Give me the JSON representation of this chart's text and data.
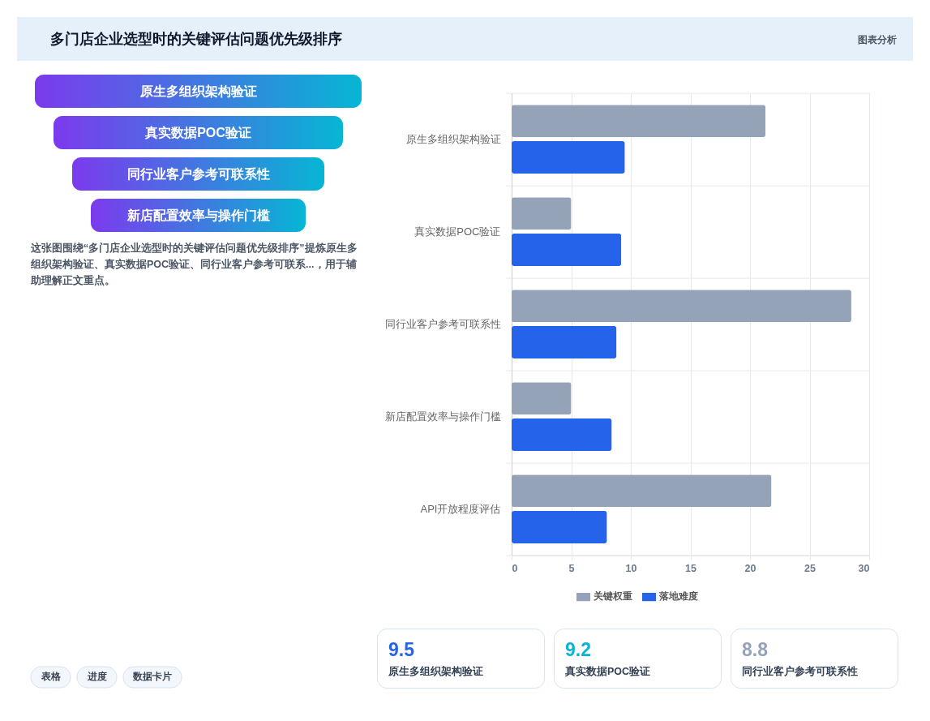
{
  "chart_data": [
    {
      "type": "other",
      "title": "多门店企业选型时的关键评估问题优先级排序",
      "categories": [
        "原生多组织架构验证",
        "真实数据POC验证",
        "同行业客户参考可联系性",
        "新店配置效率与操作门槛"
      ],
      "annotations": [
        "图表分析",
        "这张图围绕“多门店企业选型时的关键评估问题优先级排序”提炼原生多组织架构验证、真实数据POC验证、同行业客户参考可联系...，用于辅助理解正文重点。",
        "表格",
        "进度",
        "数据卡片"
      ]
    },
    {
      "type": "bar",
      "orientation": "horizontal",
      "categories": [
        "原生多组织架构验证",
        "真实数据POC验证",
        "同行业客户参考可联系性",
        "新店配置效率与操作门槛",
        "API开放程度评估"
      ],
      "series": [
        {
          "name": "关键权重",
          "color": "#94a3b8",
          "values": [
            21.3,
            5,
            28.5,
            5,
            21.8
          ]
        },
        {
          "name": "落地难度",
          "color": "#2563eb",
          "values": [
            9.5,
            9.2,
            8.8,
            8.4,
            8.0
          ]
        }
      ],
      "xlim": [
        0,
        30
      ],
      "xticks": [
        0,
        5,
        10,
        15,
        20,
        25,
        30
      ],
      "grid": true,
      "legend": "bottom"
    },
    {
      "type": "other",
      "categories": [
        "原生多组织架构验证",
        "真实数据POC验证",
        "同行业客户参考可联系性"
      ],
      "values": [
        9.5,
        9.2,
        8.8
      ],
      "colors": [
        "#2563eb",
        "#06b6d4",
        "#94a3b8"
      ],
      "data_labels": true
    }
  ]
}
